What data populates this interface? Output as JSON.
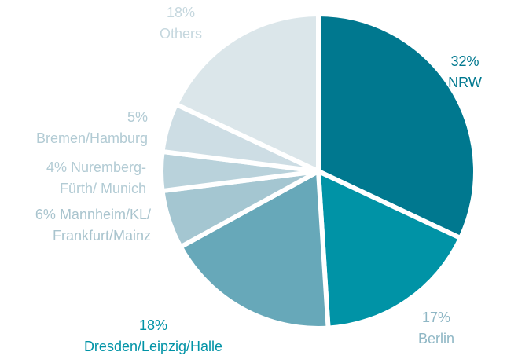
{
  "chart_data": {
    "type": "pie",
    "categories": [
      "NRW",
      "Berlin",
      "Dresden/Leipzig/Halle",
      "Mannheim/KL/\nFrankfurt/Mainz",
      "Nuremberg-\nFürth/ Munich",
      "Bremen/Hamburg",
      "Others"
    ],
    "values": [
      32,
      17,
      18,
      6,
      4,
      5,
      18
    ],
    "value_labels": [
      "32%",
      "17%",
      "18%",
      "6%",
      "4%",
      "5%",
      "18%"
    ],
    "colors": [
      "#00788f",
      "#0093a6",
      "#67a8b9",
      "#a4c6d1",
      "#b9d2db",
      "#cddde4",
      "#dbe6ea"
    ]
  }
}
